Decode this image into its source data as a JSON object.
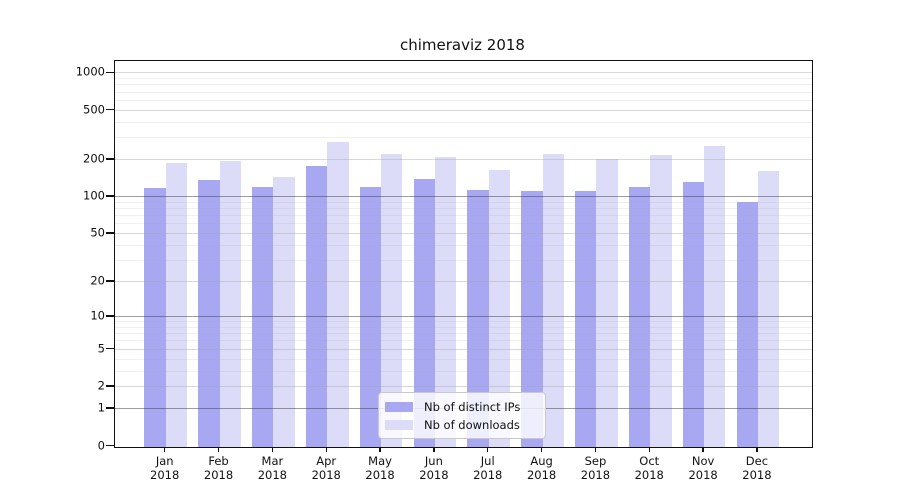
{
  "chart_data": {
    "type": "bar",
    "title": "chimeraviz 2018",
    "categories": [
      "Jan",
      "Feb",
      "Mar",
      "Apr",
      "May",
      "Jun",
      "Jul",
      "Aug",
      "Sep",
      "Oct",
      "Nov",
      "Dec"
    ],
    "category_year": "2018",
    "series": [
      {
        "name": "Nb of distinct IPs",
        "color": "#a8a8f2",
        "values": [
          118,
          137,
          121,
          178,
          121,
          140,
          115,
          112,
          113,
          121,
          134,
          91
        ]
      },
      {
        "name": "Nb of downloads",
        "color": "#dcdcf8",
        "values": [
          190,
          196,
          145,
          279,
          222,
          212,
          167,
          223,
          204,
          219,
          259,
          164
        ]
      }
    ],
    "y_ticks": [
      0,
      1,
      2,
      5,
      10,
      20,
      50,
      100,
      200,
      500,
      1000
    ],
    "y_scale": "log1p",
    "ylim": [
      0,
      1000
    ],
    "xlabel": "",
    "ylabel": "",
    "grid": true,
    "legend_position": "lower-center"
  }
}
